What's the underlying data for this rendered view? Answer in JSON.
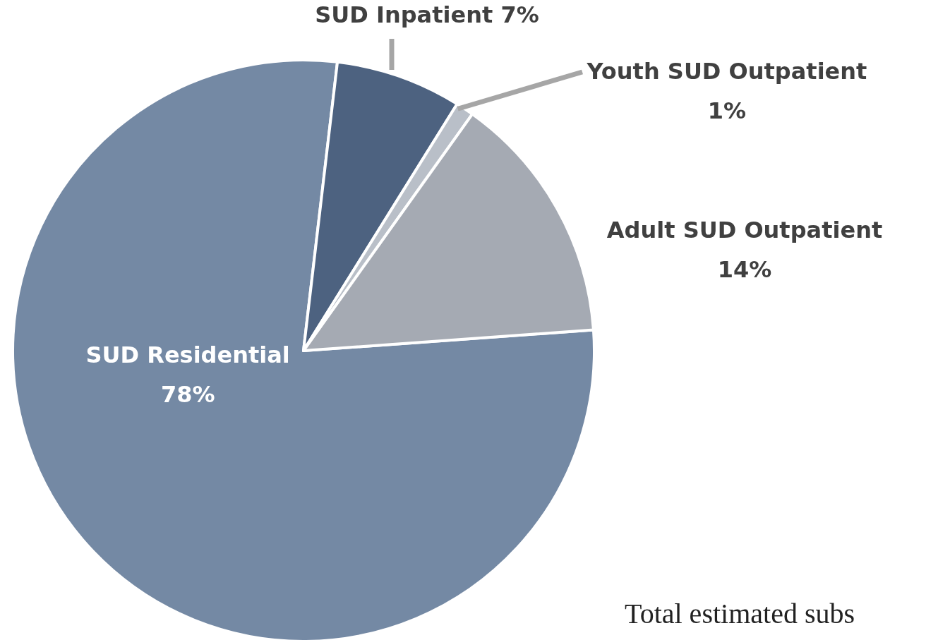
{
  "chart_data": {
    "type": "pie",
    "categories": [
      "SUD Residential",
      "SUD Inpatient",
      "Youth SUD Outpatient",
      "Adult SUD Outpatient"
    ],
    "values": [
      78,
      7,
      1,
      14
    ],
    "value_labels": [
      "78%",
      "7%",
      "1%",
      "14%"
    ],
    "colors": [
      "#7489a4",
      "#4d6280",
      "#b9bfc8",
      "#a5aab3"
    ],
    "annotations": [
      "Total estimated subs"
    ]
  }
}
